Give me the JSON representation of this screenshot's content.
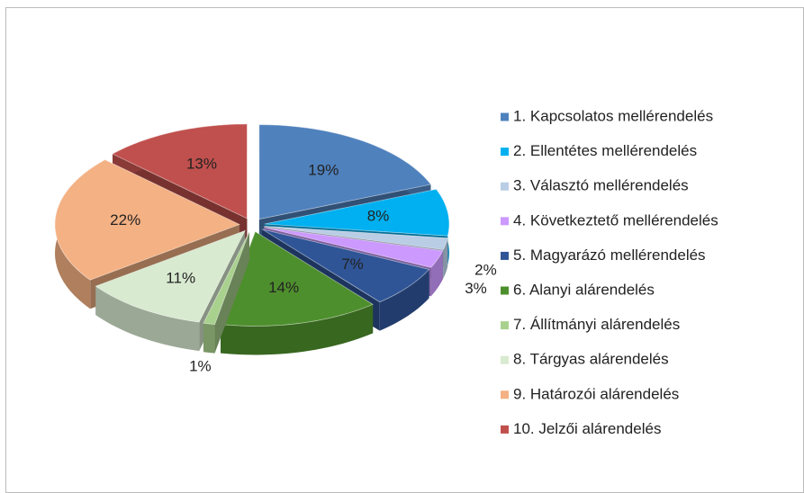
{
  "chart_data": {
    "type": "pie",
    "categories": [
      "1. Kapcsolatos mellérendelés",
      "2. Ellentétes mellérendelés",
      "3. Választó mellérendelés",
      "4. Következtető mellérendelés",
      "5. Magyarázó mellérendelés",
      "6. Alanyi alárendelés",
      "7. Állítmányi alárendelés",
      "8. Tárgyas alárendelés",
      "9. Határozói alárendelés",
      "10. Jelzői alárendelés"
    ],
    "values": [
      19,
      8,
      2,
      3,
      7,
      14,
      1,
      11,
      22,
      13
    ],
    "value_labels": [
      "19%",
      "8%",
      "2%",
      "3%",
      "7%",
      "14%",
      "1%",
      "11%",
      "22%",
      "13%"
    ],
    "colors": [
      "#4f81bd",
      "#00b0f0",
      "#b9cde5",
      "#cc99ff",
      "#2f5597",
      "#4e8f2d",
      "#a9d18e",
      "#d8ead0",
      "#f4b183",
      "#c0504d"
    ],
    "legend": "right"
  }
}
